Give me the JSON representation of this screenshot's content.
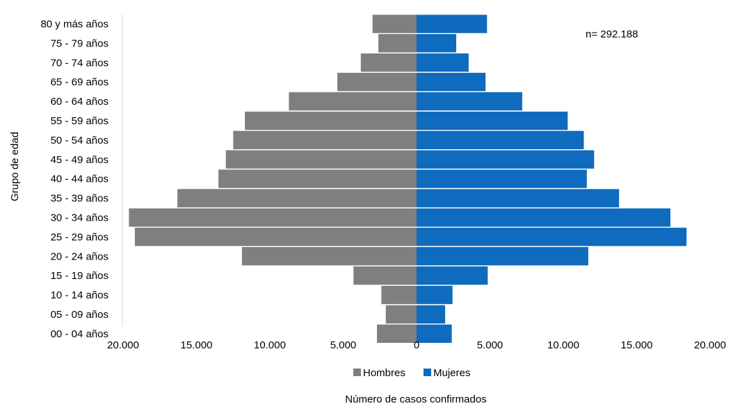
{
  "chart_data": {
    "type": "bar",
    "orientation": "horizontal",
    "layout": "population-pyramid",
    "annotation": "n= 292.188",
    "xlabel": "Número de casos confirmados",
    "ylabel": "Grupo de edad",
    "xlim": [
      -20000,
      20000
    ],
    "x_tick_values": [
      -20000,
      -15000,
      -10000,
      -5000,
      0,
      5000,
      10000,
      15000,
      20000
    ],
    "x_tick_labels": [
      "20.000",
      "15.000",
      "10.000",
      "5.000",
      "0",
      "5.000",
      "10.000",
      "15.000",
      "20.000"
    ],
    "grid": false,
    "legend_position": "bottom",
    "categories": [
      "80 y más años",
      "75 - 79 años",
      "70 - 74 años",
      "65 - 69 años",
      "60 - 64 años",
      "55 - 59 años",
      "50 - 54 años",
      "45 - 49 años",
      "40 - 44 años",
      "35 - 39 años",
      "30 - 34 años",
      "25 - 29 años",
      "20 - 24 años",
      "15 - 19 años",
      "10 - 14 años",
      "05 - 09 años",
      "00 - 04 años"
    ],
    "series": [
      {
        "name": "Hombres",
        "color": "#7f7f7f",
        "side": "left",
        "values": [
          3000,
          2600,
          3800,
          5400,
          8700,
          11700,
          12500,
          13000,
          13500,
          16300,
          19600,
          19200,
          11900,
          4300,
          2400,
          2100,
          2700
        ]
      },
      {
        "name": "Mujeres",
        "color": "#0f6bbd",
        "side": "right",
        "values": [
          4800,
          2700,
          3550,
          4700,
          7200,
          10300,
          11400,
          12100,
          11600,
          13800,
          17300,
          18400,
          11700,
          4850,
          2450,
          1950,
          2400
        ]
      }
    ]
  }
}
